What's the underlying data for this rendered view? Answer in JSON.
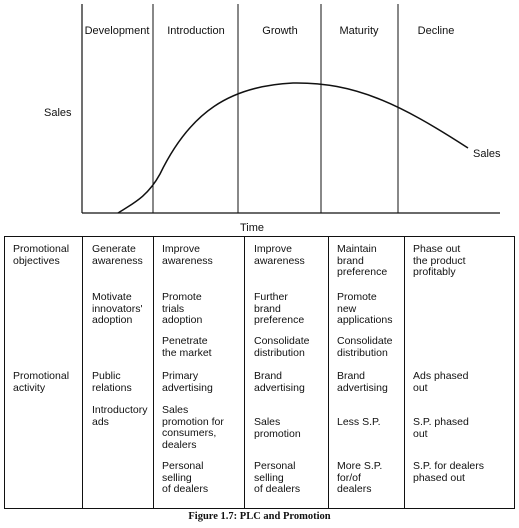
{
  "chart": {
    "stages": [
      "Development",
      "Introduction",
      "Growth",
      "Maturity",
      "Decline"
    ],
    "y_label": "Sales",
    "x_label": "Time",
    "curve_label": "Sales"
  },
  "table": {
    "rows": [
      {
        "label": "Promotional\nobjectives",
        "cells": [
          [
            "Generate\nawareness",
            "Motivate\ninnovators'\nadoption"
          ],
          [
            "Improve\nawareness",
            "Promote\ntrials\nadoption",
            "Penetrate\nthe market"
          ],
          [
            "Improve\nawareness",
            "Further\nbrand\npreference",
            "Consolidate\ndistribution"
          ],
          [
            "Maintain\nbrand\npreference",
            "Promote\nnew\napplications",
            "Consolidate\ndistribution"
          ],
          [
            "Phase out\nthe product\nprofitably"
          ]
        ]
      },
      {
        "label": "Promotional\nactivity",
        "cells": [
          [
            "Public\nrelations",
            "Introductory\nads"
          ],
          [
            "Primary\nadvertising",
            "Sales\npromotion for\nconsumers,\ndealers",
            "Personal\nselling\nof dealers"
          ],
          [
            "Brand\nadvertising",
            "Sales\npromotion",
            "Personal\nselling\nof dealers"
          ],
          [
            "Brand\nadvertising",
            "Less S.P.",
            "More S.P.\nfor/of\ndealers"
          ],
          [
            "Ads phased\nout",
            "S.P. phased\nout",
            "S.P. for dealers\nphased out"
          ]
        ]
      }
    ]
  },
  "caption": "Figure 1.7: PLC and Promotion"
}
